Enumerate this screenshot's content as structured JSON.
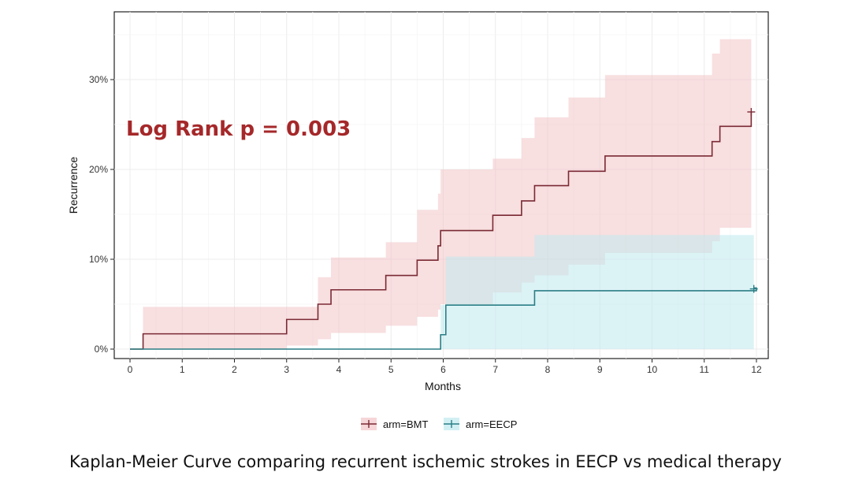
{
  "caption": "Kaplan-Meier Curve comparing recurrent ischemic strokes in EECP vs medical therapy",
  "chart_data": {
    "type": "line",
    "subtype": "kaplan-meier-cumulative-incidence",
    "annotation": "Log Rank p = 0.003",
    "xlabel": "Months",
    "ylabel": "Recurrence",
    "xlim": [
      0,
      12
    ],
    "ylim": [
      0,
      0.37
    ],
    "x_ticks": [
      "0",
      "1",
      "2",
      "3",
      "4",
      "5",
      "6",
      "7",
      "8",
      "9",
      "10",
      "11",
      "12"
    ],
    "y_ticks": [
      {
        "value": 0.0,
        "label": "0%"
      },
      {
        "value": 0.1,
        "label": "10%"
      },
      {
        "value": 0.2,
        "label": "20%"
      },
      {
        "value": 0.3,
        "label": "30%"
      }
    ],
    "grid": true,
    "legend_position": "bottom",
    "series": [
      {
        "name": "arm=BMT",
        "color": "#7a2a34",
        "ci_color": "#f2c4c7",
        "x": [
          0,
          0.25,
          3.0,
          3.6,
          3.85,
          4.9,
          5.5,
          5.9,
          5.95,
          6.95,
          7.5,
          7.75,
          8.4,
          9.1,
          11.15,
          11.3,
          11.9
        ],
        "y": [
          0,
          0.017,
          0.033,
          0.05,
          0.066,
          0.082,
          0.099,
          0.115,
          0.132,
          0.149,
          0.165,
          0.182,
          0.198,
          0.215,
          0.231,
          0.248,
          0.264
        ],
        "ci_lower": [
          0,
          0.0,
          0.004,
          0.011,
          0.018,
          0.026,
          0.036,
          0.044,
          0.05,
          0.063,
          0.074,
          0.082,
          0.094,
          0.107,
          0.12,
          0.135,
          0.148
        ],
        "ci_upper": [
          0,
          0.047,
          0.047,
          0.08,
          0.102,
          0.119,
          0.155,
          0.173,
          0.2,
          0.212,
          0.235,
          0.258,
          0.28,
          0.305,
          0.329,
          0.345,
          0.366
        ],
        "censor": [
          {
            "x": 11.9,
            "y": 0.264
          }
        ]
      },
      {
        "name": "arm=EECP",
        "color": "#2b7e86",
        "ci_color": "#bfe9ef",
        "x": [
          0,
          5.95,
          6.05,
          7.75,
          12.0
        ],
        "y": [
          0,
          0.016,
          0.049,
          0.065,
          0.068
        ],
        "ci_lower": [
          0,
          0.0,
          0.0,
          0.0,
          0.0
        ],
        "ci_upper": [
          0,
          0.049,
          0.103,
          0.127,
          0.127
        ],
        "censor": [
          {
            "x": 11.95,
            "y": 0.067
          }
        ]
      }
    ]
  }
}
